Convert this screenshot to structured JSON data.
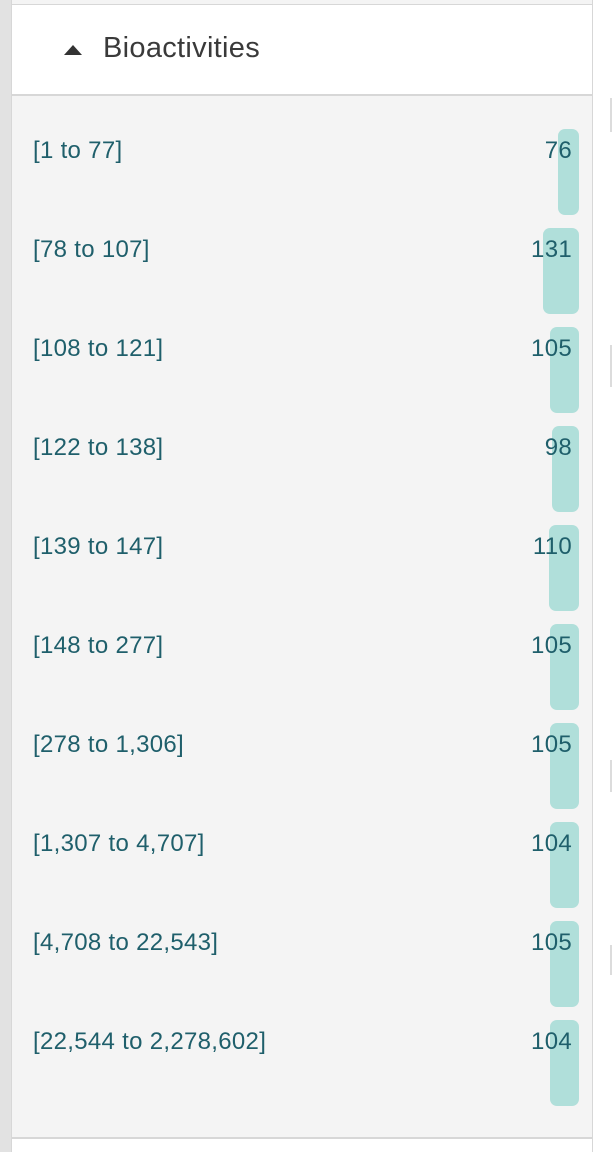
{
  "facet": {
    "title": "Bioactivities",
    "expanded": true,
    "buckets": [
      {
        "label": "[1 to 77]",
        "count": "76",
        "value": 76
      },
      {
        "label": "[78 to 107]",
        "count": "131",
        "value": 131
      },
      {
        "label": "[108 to 121]",
        "count": "105",
        "value": 105
      },
      {
        "label": "[122 to 138]",
        "count": "98",
        "value": 98
      },
      {
        "label": "[139 to 147]",
        "count": "110",
        "value": 110
      },
      {
        "label": "[148 to 277]",
        "count": "105",
        "value": 105
      },
      {
        "label": "[278 to 1,306]",
        "count": "105",
        "value": 105
      },
      {
        "label": "[1,307 to 4,707]",
        "count": "104",
        "value": 104
      },
      {
        "label": "[4,708 to 22,543]",
        "count": "105",
        "value": 105
      },
      {
        "label": "[22,544 to 2,278,602]",
        "count": "104",
        "value": 104
      }
    ]
  },
  "colors": {
    "bar": "#b0dfda",
    "link_text": "#1f5f6b",
    "title_text": "#3a3a3a"
  }
}
